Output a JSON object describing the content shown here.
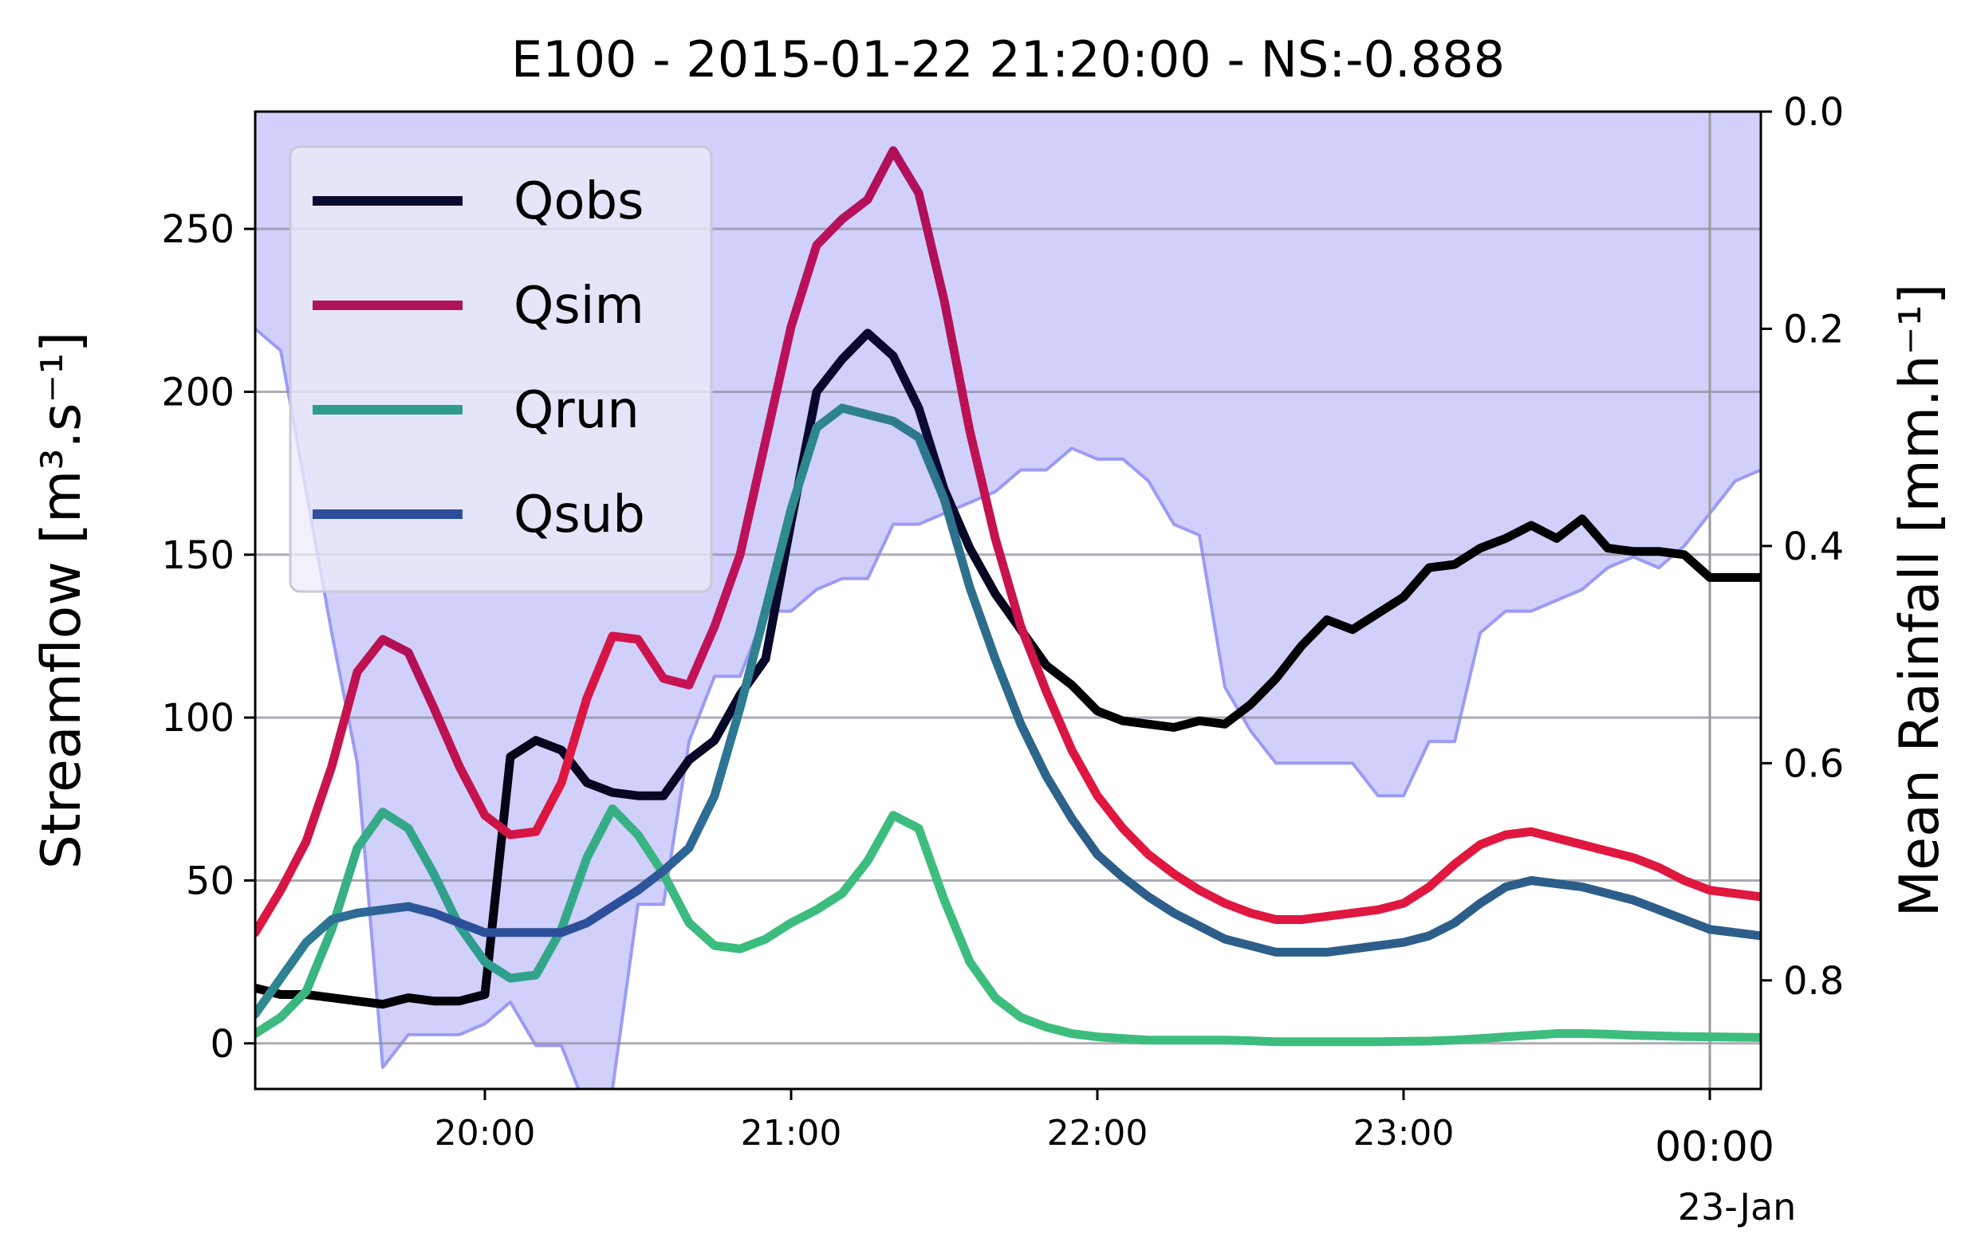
{
  "chart_data": {
    "type": "line",
    "title": "E100 - 2015-01-22 21:20:00 - NS:-0.888",
    "ylabel": "Streamflow [m³.s⁻¹]",
    "ylabel_right": "Mean Rainfall [mm.h⁻¹]",
    "xlim": [
      "19:15",
      "00:10"
    ],
    "ylim": [
      -14,
      286
    ],
    "ylim_right_inverted": [
      0.0,
      0.9
    ],
    "x_tick_labels": [
      "20:00",
      "21:00",
      "22:00",
      "23:00",
      "00:00"
    ],
    "x_tick_sublabel": "23-Jan",
    "y_ticks": [
      0,
      50,
      100,
      150,
      200,
      250
    ],
    "y_ticks_right": [
      "0.0",
      "0.2",
      "0.4",
      "0.6",
      "0.8"
    ],
    "grid": true,
    "legend_position": "top-left",
    "x": [
      "19:15",
      "19:20",
      "19:25",
      "19:30",
      "19:35",
      "19:40",
      "19:45",
      "19:50",
      "19:55",
      "20:00",
      "20:05",
      "20:10",
      "20:15",
      "20:20",
      "20:25",
      "20:30",
      "20:35",
      "20:40",
      "20:45",
      "20:50",
      "20:55",
      "21:00",
      "21:05",
      "21:10",
      "21:15",
      "21:20",
      "21:25",
      "21:30",
      "21:35",
      "21:40",
      "21:45",
      "21:50",
      "21:55",
      "22:00",
      "22:05",
      "22:10",
      "22:15",
      "22:20",
      "22:25",
      "22:30",
      "22:35",
      "22:40",
      "22:45",
      "22:50",
      "22:55",
      "23:00",
      "23:05",
      "23:10",
      "23:15",
      "23:20",
      "23:25",
      "23:30",
      "23:35",
      "23:40",
      "23:45",
      "23:50",
      "23:55",
      "00:00",
      "00:05",
      "00:10"
    ],
    "series": [
      {
        "name": "Qobs",
        "values": [
          17,
          15,
          15,
          14,
          13,
          12,
          14,
          13,
          13,
          15,
          88,
          93,
          90,
          80,
          77,
          76,
          76,
          87,
          93,
          107,
          118,
          160,
          200,
          210,
          218,
          211,
          195,
          170,
          152,
          138,
          127,
          116,
          110,
          102,
          99,
          98,
          97,
          99,
          98,
          104,
          112,
          122,
          130,
          127,
          132,
          137,
          146,
          147,
          152,
          155,
          159,
          155,
          161,
          152,
          151,
          151,
          150,
          143,
          143,
          143
        ],
        "color": "multi"
      },
      {
        "name": "Qsim",
        "values": [
          34,
          47,
          62,
          85,
          114,
          124,
          120,
          103,
          85,
          70,
          64,
          65,
          80,
          106,
          125,
          124,
          112,
          110,
          128,
          150,
          185,
          220,
          245,
          253,
          259,
          274,
          261,
          228,
          188,
          155,
          128,
          108,
          90,
          76,
          66,
          58,
          52,
          47,
          43,
          40,
          38,
          38,
          39,
          40,
          41,
          43,
          48,
          55,
          61,
          64,
          65,
          63,
          61,
          59,
          57,
          54,
          50,
          47,
          46,
          45
        ],
        "color": "multi"
      },
      {
        "name": "Qrun",
        "values": [
          3,
          8,
          16,
          35,
          60,
          71,
          66,
          52,
          36,
          25,
          20,
          21,
          35,
          57,
          72,
          64,
          52,
          37,
          30,
          29,
          32,
          37,
          41,
          46,
          56,
          70,
          66,
          44,
          25,
          14,
          8,
          5,
          3,
          2,
          1.5,
          1,
          1,
          1,
          1,
          0.8,
          0.5,
          0.5,
          0.5,
          0.5,
          0.5,
          0.6,
          0.7,
          1,
          1.5,
          2,
          2.5,
          3,
          3,
          2.8,
          2.5,
          2.3,
          2.1,
          2,
          1.9,
          1.8
        ],
        "color": "multi"
      },
      {
        "name": "Qsub",
        "values": [
          9,
          20,
          31,
          38,
          40,
          41,
          42,
          40,
          37,
          34,
          34,
          34,
          34,
          37,
          42,
          47,
          53,
          60,
          76,
          103,
          133,
          164,
          189,
          195,
          193,
          191,
          186,
          167,
          140,
          118,
          98,
          82,
          69,
          58,
          51,
          45,
          40,
          36,
          32,
          30,
          28,
          28,
          28,
          29,
          30,
          31,
          33,
          37,
          43,
          48,
          50,
          49,
          48,
          46,
          44,
          41,
          38,
          35,
          34,
          33
        ],
        "color": "multi"
      }
    ],
    "rainfall": {
      "name": "Mean Rainfall",
      "values": [
        0.2,
        0.22,
        0.35,
        0.48,
        0.6,
        0.88,
        0.85,
        0.85,
        0.85,
        0.84,
        0.82,
        0.86,
        0.86,
        0.92,
        0.9,
        0.73,
        0.73,
        0.58,
        0.52,
        0.52,
        0.46,
        0.46,
        0.44,
        0.43,
        0.43,
        0.38,
        0.38,
        0.37,
        0.36,
        0.35,
        0.33,
        0.33,
        0.31,
        0.32,
        0.32,
        0.34,
        0.38,
        0.39,
        0.53,
        0.57,
        0.6,
        0.6,
        0.6,
        0.6,
        0.63,
        0.63,
        0.58,
        0.58,
        0.48,
        0.46,
        0.46,
        0.45,
        0.44,
        0.42,
        0.41,
        0.42,
        0.4,
        0.37,
        0.34,
        0.33
      ],
      "fill_color": "#d0d0fb",
      "line_color": "#9b9bf5"
    }
  },
  "legend": {
    "items": [
      {
        "label": "Qobs",
        "color": "#0a0a30"
      },
      {
        "label": "Qsim",
        "color": "#b0145a"
      },
      {
        "label": "Qrun",
        "color": "#2e9b8f"
      },
      {
        "label": "Qsub",
        "color": "#2d4f9a"
      }
    ]
  }
}
